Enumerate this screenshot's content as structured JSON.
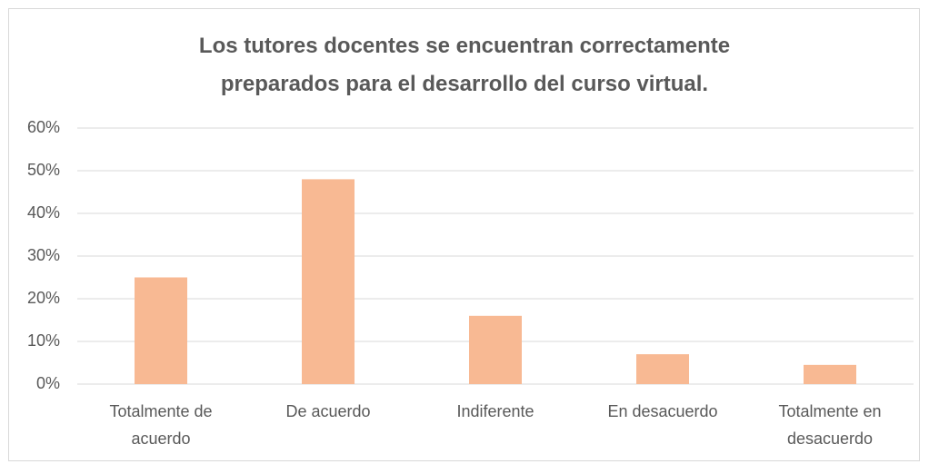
{
  "chart_data": {
    "type": "bar",
    "title": "Los tutores docentes se encuentran correctamente preparados para el desarrollo del curso virtual.",
    "categories": [
      "Totalmente de acuerdo",
      "De acuerdo",
      "Indiferente",
      "En desacuerdo",
      "Totalmente en desacuerdo"
    ],
    "values": [
      25,
      48,
      16,
      7,
      4.5
    ],
    "color": "#f8b993",
    "ylim": [
      0,
      60
    ],
    "yticks": [
      {
        "value": 0,
        "label": "0%"
      },
      {
        "value": 10,
        "label": "10%"
      },
      {
        "value": 20,
        "label": "20%"
      },
      {
        "value": 30,
        "label": "30%"
      },
      {
        "value": 40,
        "label": "40%"
      },
      {
        "value": 50,
        "label": "50%"
      },
      {
        "value": 60,
        "label": "60%"
      }
    ],
    "grid": true
  }
}
